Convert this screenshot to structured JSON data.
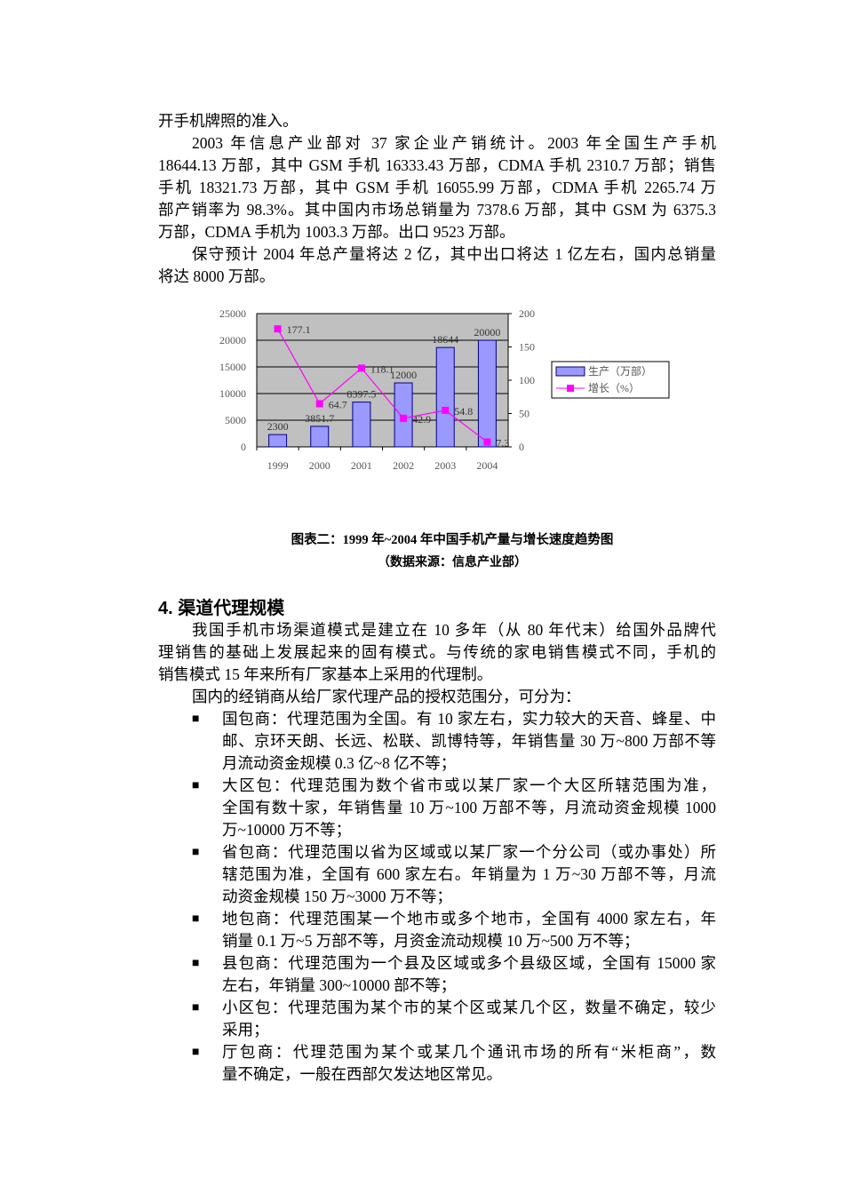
{
  "paragraphs_top": [
    {
      "indent": false,
      "lines": [
        "开手机牌照的准入。"
      ]
    },
    {
      "indent": true,
      "lines": [
        "2003 年信息产业部对 37 家企业产销统计。2003 年全国生产手机",
        "18644.13 万部，其中 GSM 手机 16333.43 万部，CDMA 手机 2310.7 万部；销售",
        "手机 18321.73 万部，其中 GSM 手机 16055.99 万部，CDMA 手机 2265.74 万",
        "部产销率为 98.3%。其中国内市场总销量为 7378.6 万部，其中 GSM 为 6375.3",
        "万部，CDMA 手机为 1003.3 万部。出口 9523 万部。"
      ]
    },
    {
      "indent": true,
      "lines": [
        "保守预计 2004 年总产量将达 2 亿，其中出口将达 1 亿左右，国内总销量",
        "将达 8000 万部。"
      ]
    }
  ],
  "chart_data": {
    "type": "bar+line",
    "categories": [
      "1999",
      "2000",
      "2001",
      "2002",
      "2003",
      "2004"
    ],
    "series": [
      {
        "name": "生产（万部）",
        "type": "bar",
        "axis": "left",
        "values": [
          2300,
          3851.7,
          8397.5,
          12000,
          18644,
          20000
        ],
        "labels": [
          "2300",
          "3851.7",
          "8397.5",
          "12000",
          "18644",
          "20000"
        ],
        "color": "#9999ff"
      },
      {
        "name": "增长（%）",
        "type": "line",
        "axis": "right",
        "values": [
          177.1,
          64.7,
          118.1,
          42.9,
          54.8,
          7.3
        ],
        "labels": [
          "177.1",
          "64.7",
          "118.1",
          "42.9",
          "54.8",
          "7.3"
        ],
        "color": "#ff00ff"
      }
    ],
    "left_axis": {
      "range": [
        0,
        25000
      ],
      "ticks": [
        "0",
        "5000",
        "10000",
        "15000",
        "20000",
        "25000"
      ]
    },
    "right_axis": {
      "range": [
        0,
        200
      ],
      "ticks": [
        "0",
        "50",
        "100",
        "150",
        "200"
      ]
    },
    "grid": true,
    "plot_background": "#c0c0c0",
    "legend_position": "right"
  },
  "caption": {
    "title": "图表二：1999 年~2004 年中国手机产量与增长速度趋势图",
    "source": "（数据来源：信息产业部）"
  },
  "section": {
    "heading": "4.  渠道代理规模",
    "paragraphs": [
      {
        "indent": true,
        "lines": [
          "我国手机市场渠道模式是建立在 10 多年（从 80 年代末）给国外品牌代",
          "理销售的基础上发展起来的固有模式。与传统的家电销售模式不同，手机的",
          "销售模式 15 年来所有厂家基本上采用的代理制。"
        ]
      },
      {
        "indent": true,
        "lines": [
          "国内的经销商从给厂家代理产品的授权范围分，可分为："
        ]
      }
    ],
    "bullet_symbol": "■",
    "bullets": [
      {
        "lines": [
          "国包商：代理范围为全国。有 10 家左右，实力较大的天音、蜂星、中",
          "邮、京环天朗、长远、松联、凯博特等，年销售量 30 万~800 万部不等",
          "月流动资金规模 0.3 亿~8 亿不等；"
        ]
      },
      {
        "lines": [
          "大区包：代理范围为数个省市或以某厂家一个大区所辖范围为准，",
          "全国有数十家，年销售量 10 万~100 万部不等，月流动资金规模 1000",
          "万~10000 万不等；"
        ]
      },
      {
        "lines": [
          "省包商：代理范围以省为区域或以某厂家一个分公司（或办事处）所",
          "辖范围为准，全国有 600 家左右。年销量为 1 万~30 万部不等，月流",
          "动资金规模 150 万~3000 万不等；"
        ]
      },
      {
        "lines": [
          "地包商：代理范围某一个地市或多个地市，全国有 4000 家左右，年",
          "销量 0.1 万~5 万部不等，月资金流动规模 10 万~500 万不等；"
        ]
      },
      {
        "lines": [
          "县包商：代理范围为一个县及区域或多个县级区域，全国有 15000 家",
          "左右，年销量 300~10000 部不等；"
        ]
      },
      {
        "lines": [
          "小区包：代理范围为某个市的某个区或某几个区，数量不确定，较少",
          "采用；"
        ]
      },
      {
        "lines": [
          "厅包商：代理范围为某个或某几个通讯市场的所有“米柜商”，数",
          "量不确定，一般在西部欠发达地区常见。"
        ]
      }
    ]
  }
}
